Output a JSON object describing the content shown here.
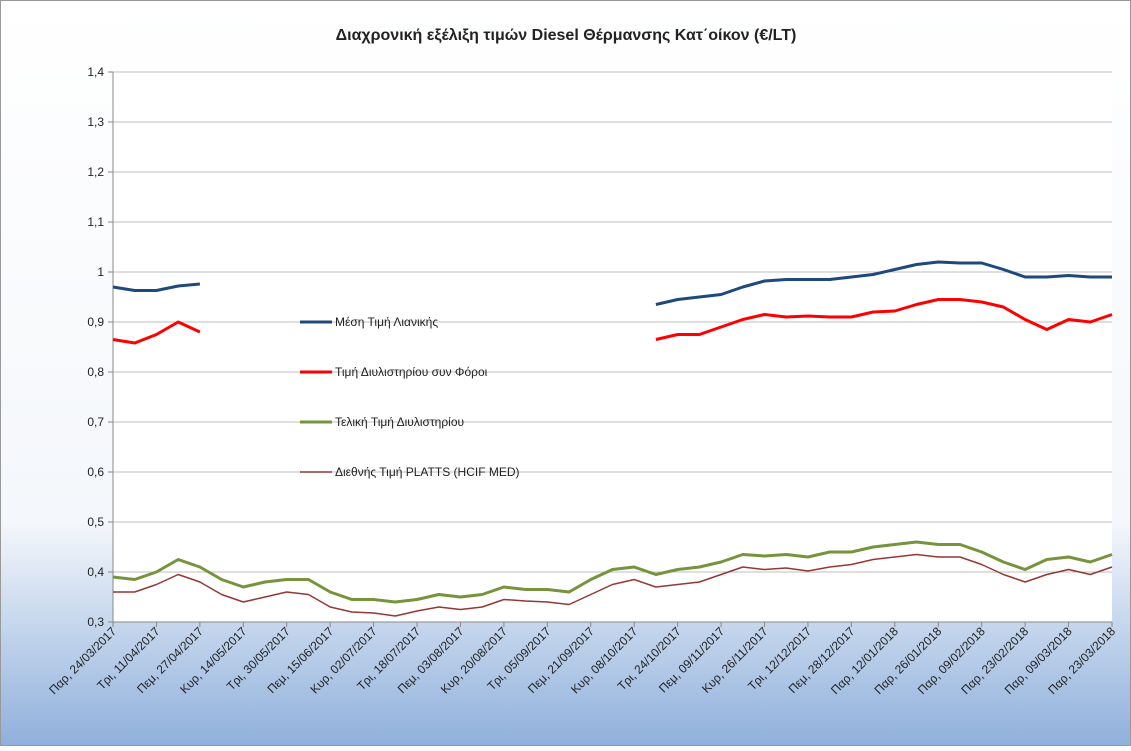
{
  "chart_data": {
    "type": "line",
    "title": "Διαχρονική εξέλιξη τιμών Diesel Θέρμανσης Κατ΄οίκον (€/LT)",
    "categories": [
      "Παρ, 24/03/2017",
      null,
      "Τρι, 11/04/2017",
      null,
      "Πεμ, 27/04/2017",
      null,
      "Κυρ, 14/05/2017",
      null,
      "Τρι, 30/05/2017",
      null,
      "Πεμ, 15/06/2017",
      null,
      "Κυρ, 02/07/2017",
      null,
      "Τρι, 18/07/2017",
      null,
      "Πεμ, 03/08/2017",
      null,
      "Κυρ, 20/08/2017",
      null,
      "Τρι, 05/09/2017",
      null,
      "Πεμ, 21/09/2017",
      null,
      "Κυρ, 08/10/2017",
      null,
      "Τρι, 24/10/2017",
      null,
      "Πεμ, 09/11/2017",
      null,
      "Κυρ, 26/11/2017",
      null,
      "Τρι, 12/12/2017",
      null,
      "Πεμ, 28/12/2017",
      null,
      "Παρ, 12/01/2018",
      null,
      "Παρ, 26/01/2018",
      null,
      "Παρ, 09/02/2018",
      null,
      "Παρ, 23/02/2018",
      null,
      "Παρ, 09/03/2018",
      null,
      "Παρ, 23/03/2018"
    ],
    "series": [
      {
        "name": "Μέση Τιμή Λιανικής",
        "color": "#1f497d",
        "width": 3,
        "values": [
          0.97,
          0.963,
          0.963,
          0.972,
          0.976,
          null,
          null,
          null,
          null,
          null,
          null,
          null,
          null,
          null,
          null,
          null,
          null,
          null,
          null,
          null,
          null,
          null,
          null,
          null,
          null,
          0.935,
          0.945,
          0.95,
          0.955,
          0.97,
          0.982,
          0.985,
          0.985,
          0.985,
          0.99,
          0.995,
          1.005,
          1.015,
          1.02,
          1.018,
          1.018,
          1.005,
          0.99,
          0.99,
          0.993,
          0.99,
          0.99
        ]
      },
      {
        "name": "Τιμή Διυλιστηρίου συν Φόροι",
        "color": "#ff0000",
        "width": 3,
        "values": [
          0.865,
          0.858,
          0.875,
          0.9,
          0.88,
          null,
          null,
          null,
          null,
          null,
          null,
          null,
          null,
          null,
          null,
          null,
          null,
          null,
          null,
          null,
          null,
          null,
          null,
          null,
          null,
          0.865,
          0.875,
          0.875,
          0.89,
          0.905,
          0.915,
          0.91,
          0.912,
          0.91,
          0.91,
          0.92,
          0.922,
          0.935,
          0.945,
          0.945,
          0.94,
          0.93,
          0.905,
          0.885,
          0.905,
          0.9,
          0.915
        ]
      },
      {
        "name": "Τελική Τιμή Διυλιστηρίου",
        "color": "#77933c",
        "width": 3,
        "values": [
          0.39,
          0.385,
          0.4,
          0.425,
          0.41,
          0.385,
          0.37,
          0.38,
          0.385,
          0.385,
          0.36,
          0.345,
          0.345,
          0.34,
          0.345,
          0.355,
          0.35,
          0.355,
          0.37,
          0.365,
          0.365,
          0.36,
          0.385,
          0.405,
          0.41,
          0.395,
          0.405,
          0.41,
          0.42,
          0.435,
          0.432,
          0.435,
          0.43,
          0.44,
          0.44,
          0.45,
          0.455,
          0.46,
          0.455,
          0.455,
          0.44,
          0.42,
          0.405,
          0.425,
          0.43,
          0.42,
          0.435
        ]
      },
      {
        "name": "Διεθνής Τιμή PLATTS (HCIF MED)",
        "color": "#953735",
        "width": 1.5,
        "values": [
          0.36,
          0.36,
          0.375,
          0.395,
          0.38,
          0.355,
          0.34,
          0.35,
          0.36,
          0.355,
          0.33,
          0.32,
          0.318,
          0.312,
          0.322,
          0.33,
          0.325,
          0.33,
          0.345,
          0.342,
          0.34,
          0.335,
          0.355,
          0.375,
          0.385,
          0.37,
          0.375,
          0.38,
          0.395,
          0.41,
          0.405,
          0.408,
          0.402,
          0.41,
          0.415,
          0.425,
          0.43,
          0.435,
          0.43,
          0.43,
          0.415,
          0.395,
          0.38,
          0.395,
          0.405,
          0.395,
          0.41
        ]
      }
    ],
    "ylim": [
      0.3,
      1.4
    ],
    "yticks": [
      {
        "value": 0.3,
        "label": "0,3"
      },
      {
        "value": 0.4,
        "label": "0,4"
      },
      {
        "value": 0.5,
        "label": "0,5"
      },
      {
        "value": 0.6,
        "label": "0,6"
      },
      {
        "value": 0.7,
        "label": "0,7"
      },
      {
        "value": 0.8,
        "label": "0,8"
      },
      {
        "value": 0.9,
        "label": "0,9"
      },
      1,
      {
        "value": 1.1,
        "label": "1,1"
      },
      {
        "value": 1.2,
        "label": "1,2"
      },
      {
        "value": 1.3,
        "label": "1,3"
      },
      {
        "value": 1.4,
        "label": "1,4"
      }
    ],
    "grid": true
  }
}
